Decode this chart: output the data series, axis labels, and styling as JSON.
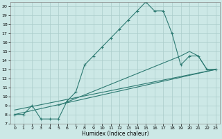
{
  "xlabel": "Humidex (Indice chaleur)",
  "bg_color": "#cce8e6",
  "grid_color": "#aaccca",
  "line_color": "#2d7a72",
  "xlim": [
    -0.5,
    23.5
  ],
  "ylim": [
    7,
    20.5
  ],
  "xticks": [
    0,
    1,
    2,
    3,
    4,
    5,
    6,
    7,
    8,
    9,
    10,
    11,
    12,
    13,
    14,
    15,
    16,
    17,
    18,
    19,
    20,
    21,
    22,
    23
  ],
  "yticks": [
    7,
    8,
    9,
    10,
    11,
    12,
    13,
    14,
    15,
    16,
    17,
    18,
    19,
    20
  ],
  "curve1_x": [
    0,
    1,
    2,
    3,
    4,
    5,
    6,
    7,
    8,
    9,
    10,
    11,
    12,
    13,
    14,
    15,
    16,
    17,
    18,
    19,
    20,
    21,
    22,
    23
  ],
  "curve1_y": [
    8.0,
    8.0,
    9.0,
    7.5,
    7.5,
    7.5,
    9.5,
    10.5,
    13.5,
    14.5,
    15.5,
    16.5,
    17.5,
    18.5,
    19.5,
    20.5,
    19.5,
    19.5,
    17.0,
    13.5,
    14.5,
    14.5,
    13.0,
    13.0
  ],
  "curve2_x": [
    0,
    23
  ],
  "curve2_y": [
    8.0,
    13.0
  ],
  "curve3_x": [
    0,
    23
  ],
  "curve3_y": [
    8.5,
    13.0
  ],
  "curve4_x": [
    5,
    19,
    20,
    21,
    22,
    23
  ],
  "curve4_y": [
    9.0,
    14.5,
    15.0,
    14.5,
    13.0,
    13.0
  ]
}
